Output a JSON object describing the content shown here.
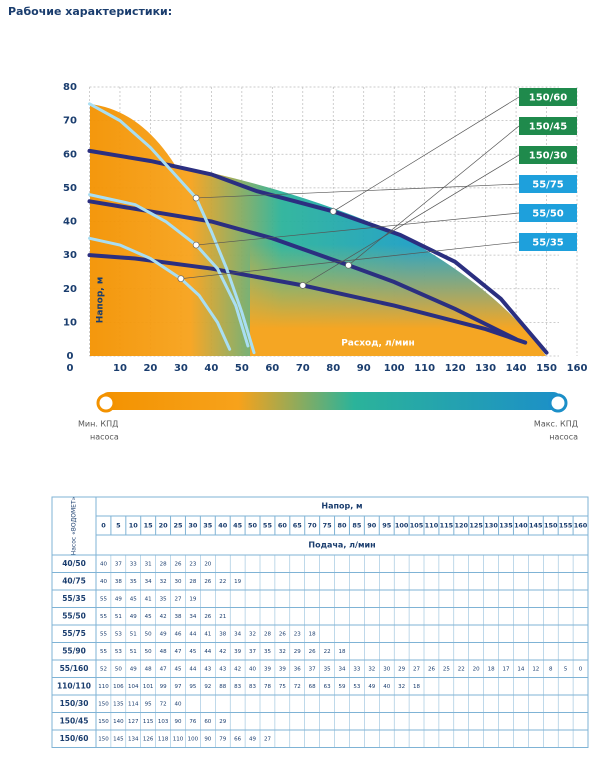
{
  "title": "Рабочие характеристики:",
  "chart_data": {
    "type": "line",
    "x_label": "Расход, л/мин",
    "y_label": "Напор, м",
    "xlim": [
      0,
      160
    ],
    "xticks": [
      0,
      10,
      20,
      30,
      40,
      50,
      60,
      70,
      80,
      90,
      100,
      110,
      120,
      130,
      140,
      150,
      160
    ],
    "ylim": [
      0,
      80
    ],
    "yticks": [
      0,
      10,
      20,
      30,
      40,
      50,
      60,
      70,
      80
    ],
    "grid": true,
    "series": [
      {
        "name": "150/60",
        "color": "#2b2f80",
        "label_color": "#1f8a4c",
        "x": [
          0,
          20,
          40,
          55,
          80,
          102,
          120,
          135,
          150
        ],
        "values": [
          61,
          58,
          54,
          49,
          43,
          36,
          28,
          17,
          1
        ]
      },
      {
        "name": "150/45",
        "color": "#2b2f80",
        "label_color": "#1f8a4c",
        "x": [
          0,
          20,
          40,
          60,
          85,
          100,
          120,
          140
        ],
        "values": [
          46,
          43,
          40,
          35,
          27,
          22,
          14,
          5
        ]
      },
      {
        "name": "150/30",
        "color": "#2b2f80",
        "label_color": "#1f8a4c",
        "x": [
          0,
          15,
          40,
          70,
          100,
          130,
          143
        ],
        "values": [
          30,
          29,
          26,
          21,
          15,
          8,
          4
        ]
      },
      {
        "name": "55/75",
        "color": "#a9def2",
        "label_color": "#1ea0dc",
        "x": [
          0,
          10,
          20,
          30,
          35,
          40,
          45,
          50,
          54
        ],
        "values": [
          75,
          70,
          62,
          52,
          47,
          37,
          26,
          13,
          1
        ]
      },
      {
        "name": "55/50",
        "color": "#a9def2",
        "label_color": "#1ea0dc",
        "x": [
          0,
          15,
          25,
          35,
          42,
          48,
          52
        ],
        "values": [
          48,
          45,
          40,
          33,
          26,
          15,
          3
        ]
      },
      {
        "name": "55/35",
        "color": "#a9def2",
        "label_color": "#1ea0dc",
        "x": [
          0,
          10,
          20,
          30,
          36,
          42,
          46
        ],
        "values": [
          35,
          33,
          29,
          23,
          18,
          10,
          2
        ]
      }
    ]
  },
  "efficiency_scale": {
    "min_label": "Мин. КПД",
    "max_label": "Макс. КПД",
    "sublabel": "насоса"
  },
  "table": {
    "pump_header": "Насос «ВОДОМЕТ»",
    "head_header": "Напор, м",
    "flow_header": "Подача, л/мин",
    "heads": [
      0,
      5,
      10,
      15,
      20,
      25,
      30,
      35,
      40,
      45,
      50,
      55,
      60,
      65,
      70,
      75,
      80,
      85,
      90,
      95,
      100,
      105,
      110,
      115,
      120,
      125,
      130,
      135,
      140,
      145,
      150,
      155,
      160
    ],
    "rows": [
      {
        "pump": "40/50",
        "flows": [
          40,
          37,
          33,
          31,
          28,
          26,
          23,
          20
        ]
      },
      {
        "pump": "40/75",
        "flows": [
          40,
          38,
          35,
          34,
          32,
          30,
          28,
          26,
          22,
          19
        ]
      },
      {
        "pump": "55/35",
        "flows": [
          55,
          49,
          45,
          41,
          35,
          27,
          19
        ]
      },
      {
        "pump": "55/50",
        "flows": [
          55,
          51,
          49,
          45,
          42,
          38,
          34,
          26,
          21
        ]
      },
      {
        "pump": "55/75",
        "flows": [
          55,
          53,
          51,
          50,
          49,
          46,
          44,
          41,
          38,
          34,
          32,
          28,
          26,
          23,
          18
        ]
      },
      {
        "pump": "55/90",
        "flows": [
          55,
          53,
          51,
          50,
          48,
          47,
          45,
          44,
          42,
          39,
          37,
          35,
          32,
          29,
          26,
          22,
          18
        ]
      },
      {
        "pump": "55/160",
        "flows": [
          52,
          50,
          49,
          48,
          47,
          45,
          44,
          43,
          43,
          42,
          40,
          39,
          39,
          36,
          37,
          35,
          34,
          33,
          32,
          30,
          29,
          27,
          26,
          25,
          22,
          20,
          18,
          17,
          14,
          12,
          8,
          5,
          0
        ]
      },
      {
        "pump": "110/110",
        "flows": [
          110,
          106,
          104,
          101,
          99,
          97,
          95,
          92,
          88,
          83,
          83,
          78,
          75,
          72,
          68,
          63,
          59,
          53,
          49,
          40,
          32,
          18
        ]
      },
      {
        "pump": "150/30",
        "flows": [
          150,
          135,
          114,
          95,
          72,
          40
        ]
      },
      {
        "pump": "150/45",
        "flows": [
          150,
          140,
          127,
          115,
          103,
          90,
          76,
          60,
          29
        ]
      },
      {
        "pump": "150/60",
        "flows": [
          150,
          145,
          134,
          126,
          118,
          110,
          100,
          90,
          79,
          66,
          49,
          27
        ]
      }
    ]
  }
}
